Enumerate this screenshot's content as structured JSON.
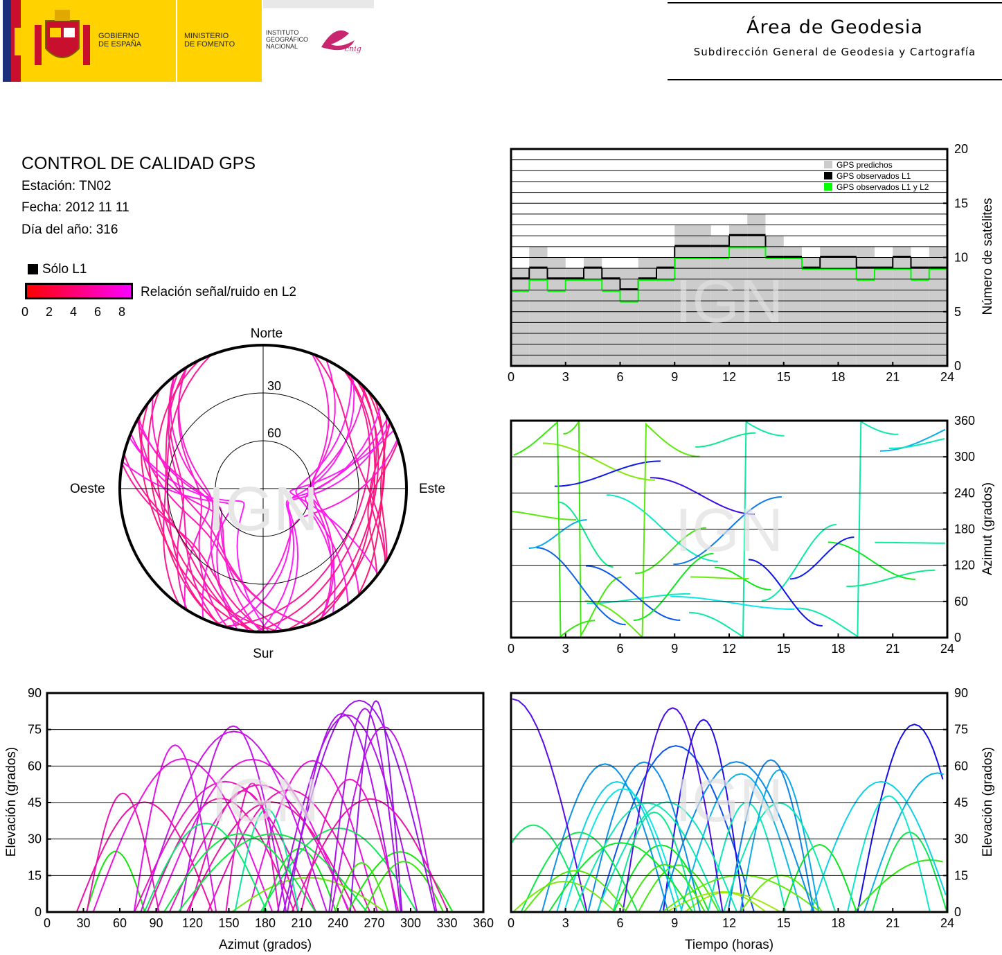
{
  "header": {
    "logos": {
      "gobierno": "GOBIERNO\nDE ESPAÑA",
      "ministerio": "MINISTERIO\nDE FOMENTO",
      "instituto": "INSTITUTO\nGEOGRÁFICO\nNACIONAL",
      "cnig": "cnig"
    },
    "title": "Área de Geodesia",
    "subtitle": "Subdirección General de Geodesia y Cartografía"
  },
  "info": {
    "title": "CONTROL DE CALIDAD GPS",
    "station": "Estación: TN02",
    "date": "Fecha: 2012 11 11",
    "doy": "Día del año: 316"
  },
  "legend": {
    "l1_only": "Sólo L1",
    "snr_label": "Relación señal/ruido en L2",
    "snr_ticks": [
      "0",
      "2",
      "4",
      "6",
      "8"
    ]
  },
  "watermark": "IGN",
  "colors": {
    "predicted": "#cccccc",
    "observed_l1": "#000000",
    "observed_l1l2": "#00ff00",
    "snr_low": "#ff0000",
    "snr_high": "#ff00ff"
  },
  "chart_data": [
    {
      "id": "satellite-count",
      "type": "area",
      "xlabel": "",
      "ylabel": "Número de satélites",
      "xlim": [
        0,
        24
      ],
      "ylim": [
        0,
        20
      ],
      "xticks": [
        "0",
        "3",
        "6",
        "9",
        "12",
        "15",
        "18",
        "21",
        "24"
      ],
      "yticks": [
        "0",
        "5",
        "10",
        "15",
        "20"
      ],
      "legend_position": "top-right",
      "series": [
        {
          "name": "GPS predichos",
          "color": "#cccccc",
          "x": [
            0,
            1,
            2,
            3,
            4,
            5,
            6,
            7,
            8,
            9,
            10,
            11,
            12,
            13,
            14,
            15,
            16,
            17,
            18,
            19,
            20,
            21,
            22,
            23,
            24
          ],
          "values": [
            9,
            11,
            10,
            9,
            10,
            9,
            9,
            10,
            10,
            13,
            13,
            12,
            13,
            14,
            12,
            11,
            10,
            11,
            11,
            11,
            10,
            11,
            10,
            11,
            9
          ]
        },
        {
          "name": "GPS observados L1",
          "color": "#000000",
          "x": [
            0,
            1,
            2,
            3,
            4,
            5,
            6,
            7,
            8,
            9,
            10,
            11,
            12,
            13,
            14,
            15,
            16,
            17,
            18,
            19,
            20,
            21,
            22,
            23,
            24
          ],
          "values": [
            8,
            9,
            8,
            8,
            9,
            8,
            7,
            8,
            9,
            11,
            11,
            11,
            12,
            12,
            10,
            10,
            9,
            10,
            10,
            9,
            9,
            10,
            9,
            9,
            8
          ]
        },
        {
          "name": "GPS observados L1 y L2",
          "color": "#00ff00",
          "x": [
            0,
            1,
            2,
            3,
            4,
            5,
            6,
            7,
            8,
            9,
            10,
            11,
            12,
            13,
            14,
            15,
            16,
            17,
            18,
            19,
            20,
            21,
            22,
            23,
            24
          ],
          "values": [
            7,
            8,
            7,
            8,
            8,
            7,
            6,
            8,
            8,
            10,
            10,
            10,
            11,
            11,
            10,
            10,
            9,
            9,
            9,
            8,
            9,
            9,
            8,
            9,
            7
          ]
        }
      ]
    },
    {
      "id": "skyplot",
      "type": "scatter",
      "title": "",
      "directions": {
        "north": "Norte",
        "south": "Sur",
        "east": "Este",
        "west": "Oeste"
      },
      "elevation_rings": [
        "30",
        "60"
      ],
      "note_series": "satellite tracks coloured by L2 SNR"
    },
    {
      "id": "azimuth-time",
      "type": "line",
      "xlabel": "",
      "ylabel": "Azimut (grados)",
      "xlim": [
        0,
        24
      ],
      "ylim": [
        0,
        360
      ],
      "xticks": [
        "0",
        "3",
        "6",
        "9",
        "12",
        "15",
        "18",
        "21",
        "24"
      ],
      "yticks": [
        "0",
        "60",
        "120",
        "180",
        "240",
        "300",
        "360"
      ]
    },
    {
      "id": "elevation-azimuth",
      "type": "line",
      "xlabel": "Azimut (grados)",
      "ylabel": "Elevación (grados)",
      "xlim": [
        0,
        360
      ],
      "ylim": [
        0,
        90
      ],
      "xticks": [
        "0",
        "30",
        "60",
        "90",
        "120",
        "150",
        "180",
        "210",
        "240",
        "270",
        "300",
        "330",
        "360"
      ],
      "yticks": [
        "0",
        "15",
        "30",
        "45",
        "60",
        "75",
        "90"
      ]
    },
    {
      "id": "elevation-time",
      "type": "line",
      "xlabel": "Tiempo (horas)",
      "ylabel": "Elevación (grados)",
      "xlim": [
        0,
        24
      ],
      "ylim": [
        0,
        90
      ],
      "xticks": [
        "0",
        "3",
        "6",
        "9",
        "12",
        "15",
        "18",
        "21",
        "24"
      ],
      "yticks": [
        "0",
        "15",
        "30",
        "45",
        "60",
        "75",
        "90"
      ]
    }
  ]
}
